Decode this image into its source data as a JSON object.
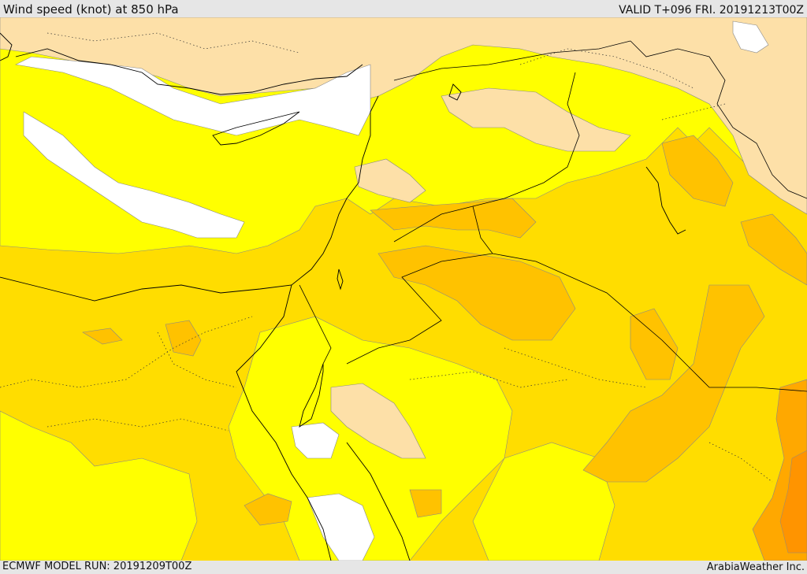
{
  "header": {
    "title": "Wind speed (knot) at 850 hPa",
    "valid": "VALID T+096 FRI. 20191213T00Z"
  },
  "footer": {
    "model_run": "ECMWF MODEL RUN: 20191209T00Z",
    "credit": "ArabiaWeather Inc."
  },
  "colors": {
    "white": "#ffffff",
    "peach": "#fde0a8",
    "light_yellow": "#ffff00",
    "yellow": "#ffdd00",
    "gold": "#ffc200",
    "orange": "#ffa800",
    "dark_orange": "#ff9400"
  }
}
